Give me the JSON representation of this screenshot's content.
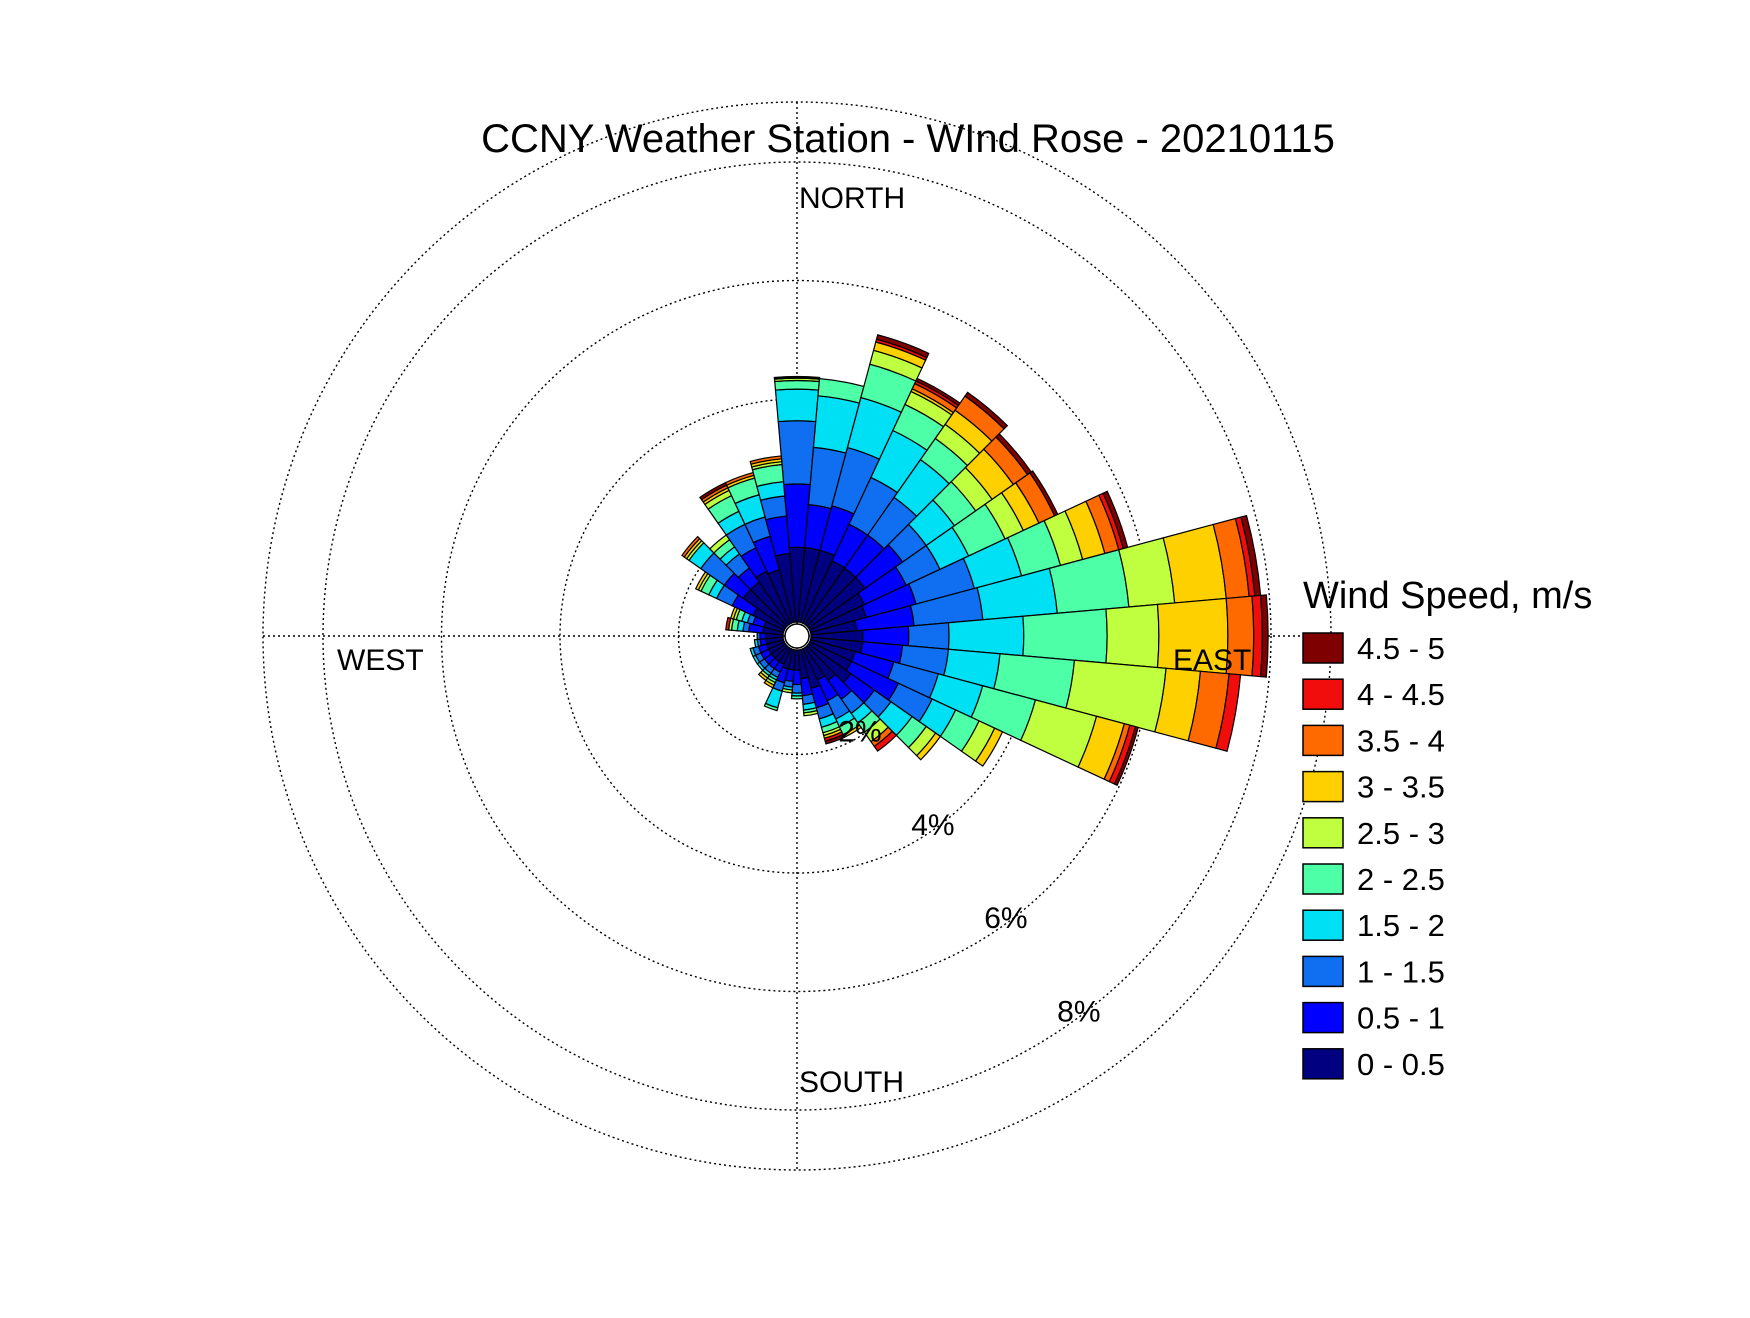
{
  "chart_data": {
    "type": "windrose",
    "title": "CCNY Weather Station - WInd Rose - 20210115",
    "direction_labels": {
      "north": "NORTH",
      "east": "EAST",
      "south": "SOUTH",
      "west": "WEST"
    },
    "radial_ticks": [
      {
        "value": 2,
        "label": "2%"
      },
      {
        "value": 4,
        "label": "4%"
      },
      {
        "value": 6,
        "label": "6%"
      },
      {
        "value": 8,
        "label": "8%"
      }
    ],
    "radial_max": 8,
    "radial_unit": "percent",
    "grid": true,
    "legend_position": "right",
    "legend_title": "Wind Speed, m/s",
    "speed_bins": [
      {
        "label": "0 - 0.5",
        "color": "#000080"
      },
      {
        "label": "0.5 - 1",
        "color": "#0000FF"
      },
      {
        "label": "1 - 1.5",
        "color": "#0F6FF0"
      },
      {
        "label": "1.5 - 2",
        "color": "#00E0F5"
      },
      {
        "label": "2 - 2.5",
        "color": "#4DFFA6"
      },
      {
        "label": "2.5 - 3",
        "color": "#BFFF40"
      },
      {
        "label": "3 - 3.5",
        "color": "#FFD000"
      },
      {
        "label": "3.5 - 4",
        "color": "#FF6A00"
      },
      {
        "label": "4 - 4.5",
        "color": "#F20D0D"
      },
      {
        "label": "4.5 - 5",
        "color": "#7F0000"
      }
    ],
    "sectors_deg_width": 10,
    "sectors": [
      {
        "direction_deg": 0,
        "values": [
          1.3,
          1.1,
          1.1,
          0.55,
          0.15,
          0.04,
          0.02,
          0.01,
          0.0,
          0.0
        ]
      },
      {
        "direction_deg": 10,
        "values": [
          1.3,
          0.75,
          1.0,
          0.9,
          0.3,
          0.0,
          0.0,
          0.0,
          0.0,
          0.0
        ]
      },
      {
        "direction_deg": 20,
        "values": [
          1.3,
          0.8,
          1.05,
          0.9,
          0.6,
          0.25,
          0.15,
          0.0,
          0.05,
          0.08
        ]
      },
      {
        "direction_deg": 30,
        "values": [
          1.2,
          0.7,
          0.9,
          0.9,
          0.5,
          0.25,
          0.05,
          0.1,
          0.05,
          0.05
        ]
      },
      {
        "direction_deg": 40,
        "values": [
          1.2,
          0.7,
          0.8,
          0.8,
          0.45,
          0.3,
          0.3,
          0.3,
          0.0,
          0.08
        ]
      },
      {
        "direction_deg": 50,
        "values": [
          1.2,
          0.8,
          0.5,
          0.6,
          0.45,
          0.35,
          0.45,
          0.3,
          0.0,
          0.08
        ]
      },
      {
        "direction_deg": 60,
        "values": [
          1.05,
          0.8,
          0.65,
          0.55,
          0.7,
          0.35,
          0.3,
          0.3,
          0.0,
          0.06
        ]
      },
      {
        "direction_deg": 70,
        "values": [
          1.0,
          0.9,
          1.05,
          0.85,
          0.7,
          0.4,
          0.4,
          0.25,
          0.08,
          0.08
        ]
      },
      {
        "direction_deg": 80,
        "values": [
          0.8,
          1.0,
          1.2,
          1.3,
          1.25,
          0.8,
          0.9,
          0.4,
          0.1,
          0.1
        ]
      },
      {
        "direction_deg": 90,
        "values": [
          0.9,
          0.8,
          0.7,
          1.3,
          1.45,
          0.9,
          1.2,
          0.45,
          0.15,
          0.1
        ]
      },
      {
        "direction_deg": 100,
        "values": [
          0.9,
          0.7,
          0.8,
          0.9,
          1.3,
          1.6,
          0.6,
          0.5,
          0.2,
          0.0
        ]
      },
      {
        "direction_deg": 110,
        "values": [
          0.8,
          0.7,
          0.8,
          0.8,
          0.95,
          1.1,
          0.5,
          0.1,
          0.1,
          0.05
        ]
      },
      {
        "direction_deg": 120,
        "values": [
          0.8,
          0.9,
          0.65,
          0.45,
          0.45,
          0.3,
          0.15,
          0.0,
          0.0,
          0.0
        ]
      },
      {
        "direction_deg": 130,
        "values": [
          0.9,
          0.5,
          0.35,
          0.45,
          0.3,
          0.2,
          0.1,
          0.0,
          0.0,
          0.0
        ]
      },
      {
        "direction_deg": 140,
        "values": [
          0.7,
          0.4,
          0.3,
          0.2,
          0.2,
          0.2,
          0.0,
          0.1,
          0.1,
          0.0
        ]
      },
      {
        "direction_deg": 150,
        "values": [
          0.6,
          0.4,
          0.35,
          0.15,
          0.15,
          0.0,
          0.05,
          0.0,
          0.0,
          0.0
        ]
      },
      {
        "direction_deg": 160,
        "values": [
          0.7,
          0.35,
          0.2,
          0.15,
          0.1,
          0.05,
          0.05,
          0.0,
          0.05,
          0.05
        ]
      },
      {
        "direction_deg": 170,
        "values": [
          0.5,
          0.3,
          0.15,
          0.1,
          0.05,
          0.05,
          0.0,
          0.0,
          0.0,
          0.0
        ]
      },
      {
        "direction_deg": 180,
        "values": [
          0.35,
          0.25,
          0.15,
          0.05,
          0.05,
          0.0,
          0.0,
          0.0,
          0.0,
          0.0
        ]
      },
      {
        "direction_deg": 190,
        "values": [
          0.35,
          0.2,
          0.1,
          0.05,
          0.0,
          0.05,
          0.0,
          0.0,
          0.0,
          0.0
        ]
      },
      {
        "direction_deg": 200,
        "values": [
          0.35,
          0.25,
          0.15,
          0.3,
          0.05,
          0.0,
          0.0,
          0.0,
          0.0,
          0.0
        ]
      },
      {
        "direction_deg": 210,
        "values": [
          0.3,
          0.15,
          0.1,
          0.05,
          0.05,
          0.05,
          0.05,
          0.0,
          0.0,
          0.0
        ]
      },
      {
        "direction_deg": 220,
        "values": [
          0.3,
          0.15,
          0.1,
          0.05,
          0.0,
          0.05,
          0.05,
          0.0,
          0.0,
          0.0
        ]
      },
      {
        "direction_deg": 230,
        "values": [
          0.3,
          0.15,
          0.1,
          0.05,
          0.0,
          0.0,
          0.0,
          0.0,
          0.0,
          0.0
        ]
      },
      {
        "direction_deg": 240,
        "values": [
          0.3,
          0.15,
          0.1,
          0.05,
          0.0,
          0.0,
          0.0,
          0.0,
          0.0,
          0.0
        ]
      },
      {
        "direction_deg": 250,
        "values": [
          0.3,
          0.15,
          0.1,
          0.05,
          0.0,
          0.0,
          0.0,
          0.0,
          0.0,
          0.0
        ]
      },
      {
        "direction_deg": 260,
        "values": [
          0.3,
          0.1,
          0.05,
          0.05,
          0.0,
          0.0,
          0.0,
          0.0,
          0.0,
          0.0
        ]
      },
      {
        "direction_deg": 270,
        "values": [
          0.3,
          0.1,
          0.05,
          0.0,
          0.0,
          0.0,
          0.0,
          0.0,
          0.0,
          0.0
        ]
      },
      {
        "direction_deg": 280,
        "values": [
          0.35,
          0.25,
          0.1,
          0.1,
          0.1,
          0.05,
          0.0,
          0.0,
          0.05,
          0.0
        ]
      },
      {
        "direction_deg": 290,
        "values": [
          0.35,
          0.2,
          0.1,
          0.1,
          0.1,
          0.05,
          0.05,
          0.0,
          0.0,
          0.0
        ]
      },
      {
        "direction_deg": 300,
        "values": [
          0.6,
          0.4,
          0.3,
          0.15,
          0.15,
          0.05,
          0.05,
          0.0,
          0.0,
          0.0
        ]
      },
      {
        "direction_deg": 310,
        "values": [
          0.9,
          0.4,
          0.5,
          0.25,
          0.0,
          0.05,
          0.05,
          0.05,
          0.0,
          0.0
        ]
      },
      {
        "direction_deg": 320,
        "values": [
          0.9,
          0.3,
          0.3,
          0.15,
          0.15,
          0.1,
          0.0,
          0.0,
          0.0,
          0.0
        ]
      },
      {
        "direction_deg": 330,
        "values": [
          1.0,
          0.45,
          0.45,
          0.25,
          0.3,
          0.1,
          0.05,
          0.05,
          0.0,
          0.05
        ]
      },
      {
        "direction_deg": 340,
        "values": [
          0.95,
          0.6,
          0.35,
          0.4,
          0.3,
          0.0,
          0.05,
          0.05,
          0.0,
          0.0
        ]
      },
      {
        "direction_deg": 350,
        "values": [
          1.2,
          0.65,
          0.35,
          0.25,
          0.3,
          0.05,
          0.05,
          0.05,
          0.0,
          0.0
        ]
      }
    ]
  }
}
